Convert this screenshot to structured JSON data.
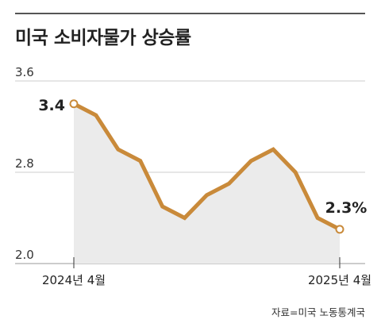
{
  "header": {
    "title": "미국 소비자물가 상승률"
  },
  "source": "자료=미국 노동통계국",
  "chart_data": {
    "type": "line",
    "title": "미국 소비자물가 상승률",
    "x": [
      "2024-04",
      "2024-05",
      "2024-06",
      "2024-07",
      "2024-08",
      "2024-09",
      "2024-10",
      "2024-11",
      "2024-12",
      "2025-01",
      "2025-02",
      "2025-03",
      "2025-04"
    ],
    "x_tick_labels": [
      {
        "index": 0,
        "label": "2024년 4월"
      },
      {
        "index": 12,
        "label": "2025년 4월"
      }
    ],
    "series": [
      {
        "values": [
          3.4,
          3.3,
          3.0,
          2.9,
          2.5,
          2.4,
          2.6,
          2.7,
          2.9,
          3.0,
          2.8,
          2.4,
          2.3
        ]
      }
    ],
    "y_ticks": [
      "3.6",
      "2.8",
      "2.0"
    ],
    "ylim": [
      2.0,
      3.6
    ],
    "grid": "horizontal",
    "area_fill": true,
    "data_labels": [
      {
        "index": 0,
        "text": "3.4"
      },
      {
        "index": 12,
        "text": "2.3%"
      }
    ],
    "colors": {
      "line": "#c98a3a",
      "area": "#ebebeb",
      "grid": "#cccccc"
    }
  }
}
